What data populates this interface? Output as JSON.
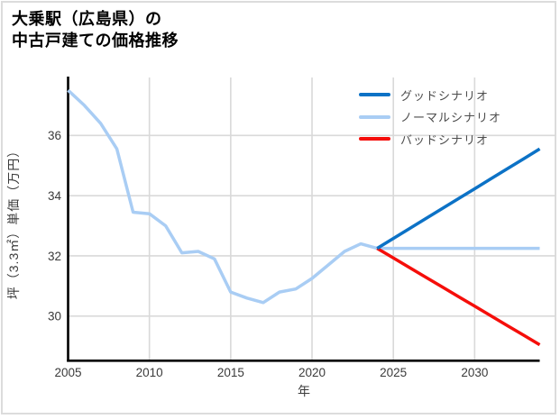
{
  "page": {
    "background": "#ffffff",
    "border_color": "#dcdcdc"
  },
  "title": {
    "line1": "大乗駅（広島県）の",
    "line2": "中古戸建ての価格推移"
  },
  "chart_data": {
    "type": "line",
    "title": "大乗駅（広島県）の中古戸建ての価格推移",
    "xlabel": "年",
    "ylabel": "坪（3.3㎡）単価（万円）",
    "xlim": [
      2005,
      2034
    ],
    "ylim": [
      28.5,
      37.9
    ],
    "xticks": [
      2005,
      2010,
      2015,
      2020,
      2025,
      2030
    ],
    "yticks": [
      30,
      32,
      34,
      36
    ],
    "grid": true,
    "legend_position": "upper-right",
    "series": [
      {
        "id": "history",
        "show_in_legend": false,
        "color": "#a9cdf4",
        "x": [
          2005,
          2006,
          2007,
          2008,
          2009,
          2010,
          2011,
          2012,
          2013,
          2014,
          2015,
          2016,
          2017,
          2018,
          2019,
          2020,
          2021,
          2022,
          2023,
          2024
        ],
        "y": [
          37.5,
          37.0,
          36.4,
          35.55,
          33.45,
          33.4,
          33.0,
          32.1,
          32.15,
          31.9,
          30.8,
          30.6,
          30.45,
          30.8,
          30.9,
          31.25,
          31.7,
          32.15,
          32.4,
          32.25
        ]
      },
      {
        "id": "good",
        "label": "グッドシナリオ",
        "show_in_legend": true,
        "color": "#0c72c6",
        "x": [
          2024,
          2025,
          2026,
          2027,
          2028,
          2029,
          2030,
          2031,
          2032,
          2033,
          2034
        ],
        "y": [
          32.25,
          32.58,
          32.91,
          33.24,
          33.57,
          33.9,
          34.23,
          34.56,
          34.89,
          35.22,
          35.55
        ]
      },
      {
        "id": "normal",
        "label": "ノーマルシナリオ",
        "show_in_legend": true,
        "color": "#a9cdf4",
        "x": [
          2024,
          2025,
          2026,
          2027,
          2028,
          2029,
          2030,
          2031,
          2032,
          2033,
          2034
        ],
        "y": [
          32.25,
          32.25,
          32.25,
          32.25,
          32.25,
          32.25,
          32.25,
          32.25,
          32.25,
          32.25,
          32.25
        ]
      },
      {
        "id": "bad",
        "label": "バッドシナリオ",
        "show_in_legend": true,
        "color": "#f50e0a",
        "x": [
          2024,
          2025,
          2026,
          2027,
          2028,
          2029,
          2030,
          2031,
          2032,
          2033,
          2034
        ],
        "y": [
          32.25,
          31.93,
          31.61,
          31.29,
          30.97,
          30.65,
          30.33,
          30.01,
          29.69,
          29.37,
          29.05
        ]
      }
    ],
    "style": {
      "grid_color": "#d9d9d9",
      "axis_color": "#000000",
      "tick_label_color": "#3a3a3a",
      "legend_text_color": "#4c4c4c"
    }
  }
}
